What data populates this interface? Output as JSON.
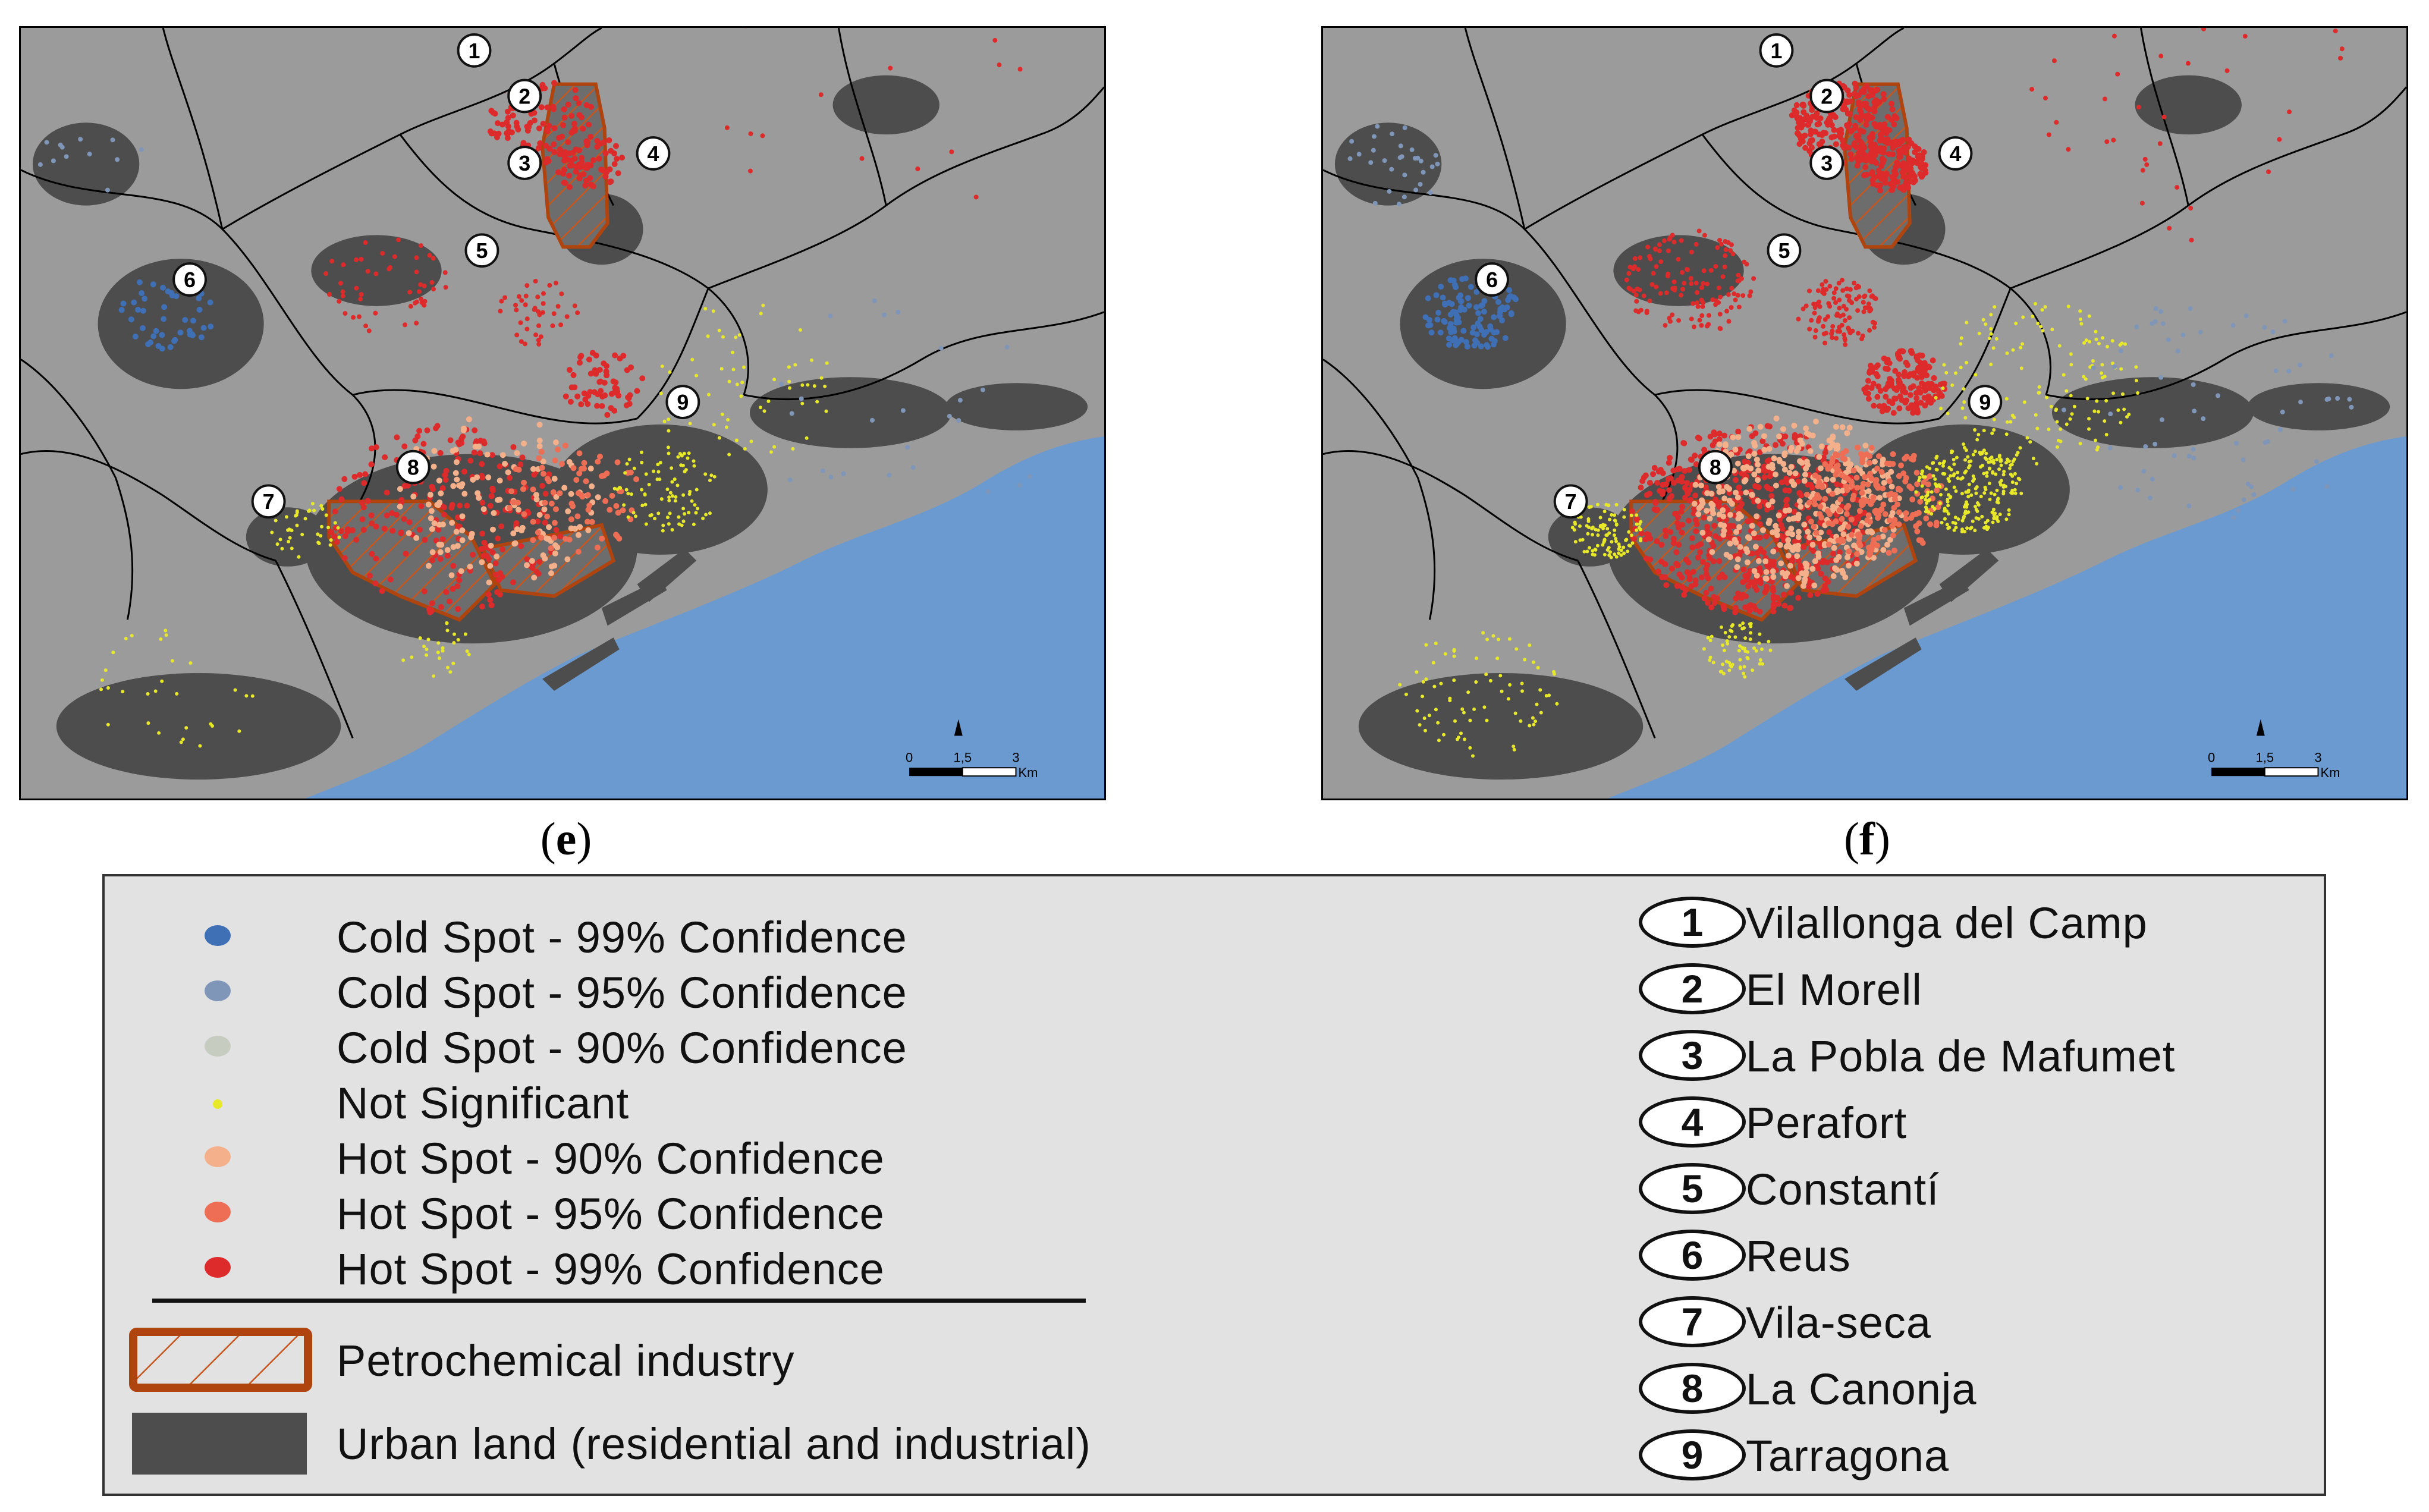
{
  "panels": [
    {
      "id": "e",
      "label": "e"
    },
    {
      "id": "f",
      "label": "f"
    }
  ],
  "scale_bar": {
    "ticks": [
      "0",
      "1,5",
      "3"
    ],
    "unit": "Km"
  },
  "legend": {
    "points": [
      {
        "label": "Cold Spot - 99% Confidence",
        "color": "#3f6fb5"
      },
      {
        "label": "Cold Spot - 95% Confidence",
        "color": "#7f96b8"
      },
      {
        "label": "Cold Spot - 90% Confidence",
        "color": "#c6ccc0"
      },
      {
        "label": "Not Significant",
        "color": "#e8e82a"
      },
      {
        "label": "Hot Spot - 90% Confidence",
        "color": "#f4b08a"
      },
      {
        "label": "Hot Spot - 95% Confidence",
        "color": "#ee6e55"
      },
      {
        "label": "Hot Spot - 99% Confidence",
        "color": "#dd2a2a"
      }
    ],
    "areas": [
      {
        "label": "Petrochemical industry",
        "color": "#b0440f"
      },
      {
        "label": "Urban land (residential and industrial)",
        "color": "#4d4d4d"
      }
    ],
    "municipalities": [
      {
        "num": "1",
        "name": "Vilallonga del Camp"
      },
      {
        "num": "2",
        "name": "El Morell"
      },
      {
        "num": "3",
        "name": "La Pobla de Mafumet"
      },
      {
        "num": "4",
        "name": "Perafort"
      },
      {
        "num": "5",
        "name": "Constantí"
      },
      {
        "num": "6",
        "name": "Reus"
      },
      {
        "num": "7",
        "name": "Vila-seca"
      },
      {
        "num": "8",
        "name": "La Canonja"
      },
      {
        "num": "9",
        "name": "Tarragona"
      }
    ]
  },
  "colors": {
    "land": "#9b9b9b",
    "urban": "#4d4d4d",
    "sea": "#6a9ad0",
    "border": "#000000"
  }
}
